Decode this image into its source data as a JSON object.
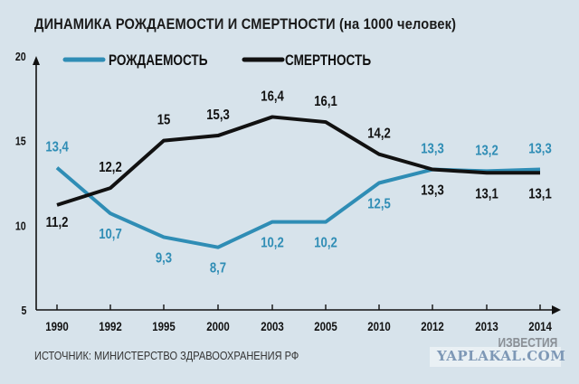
{
  "chart_data": {
    "type": "line",
    "title": "ДИНАМИКА РОЖДАЕМОСТИ И СМЕРТНОСТИ (на 1000 человек)",
    "categories": [
      "1990",
      "1992",
      "1995",
      "2000",
      "2003",
      "2005",
      "2010",
      "2012",
      "2013",
      "2014"
    ],
    "series": [
      {
        "name": "РОЖДАЕМОСТЬ",
        "color": "#2f8db5",
        "values": [
          13.4,
          10.7,
          9.3,
          8.7,
          10.2,
          10.2,
          12.5,
          13.3,
          13.2,
          13.3
        ],
        "labels": [
          "13,4",
          "10,7",
          "9,3",
          "8,7",
          "10,2",
          "10,2",
          "12,5",
          "13,3",
          "13,2",
          "13,3"
        ]
      },
      {
        "name": "СМЕРТНОСТЬ",
        "color": "#111111",
        "values": [
          11.2,
          12.2,
          15,
          15.3,
          16.4,
          16.1,
          14.2,
          13.3,
          13.1,
          13.1
        ],
        "labels": [
          "11,2",
          "12,2",
          "15",
          "15,3",
          "16,4",
          "16,1",
          "14,2",
          "13,3",
          "13,1",
          "13,1"
        ]
      }
    ],
    "yticks": [
      "5",
      "10",
      "15",
      "20"
    ],
    "ylim": [
      5,
      20
    ],
    "legend": "top",
    "grid": false
  },
  "source": "ИСТОЧНИК: МИНИСТЕРСТВО ЗДРАВООХРАНЕНИЯ РФ",
  "watermark": {
    "site": "YAPLAKAL.COM",
    "brand": "ИЗВЕСТИЯ"
  }
}
